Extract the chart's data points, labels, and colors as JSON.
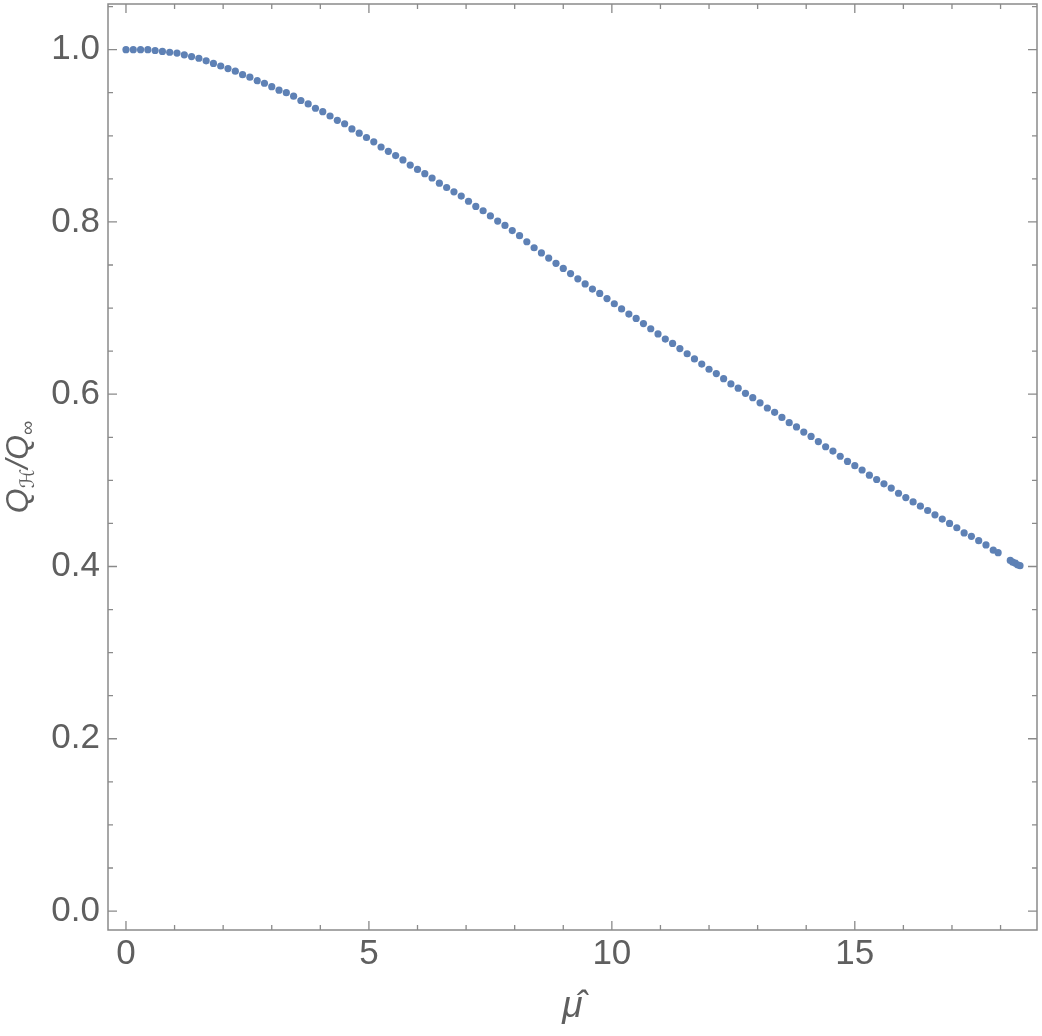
{
  "chart_data": {
    "type": "scatter",
    "xlabel": "μ̂",
    "ylabel": "Q$_{ℋ}$/Q$_{∞}$",
    "marker": "circle",
    "color": "#5e81b5",
    "x": [
      0,
      0.15,
      0.3,
      0.45,
      0.6,
      0.75,
      0.9,
      1.05,
      1.2,
      1.35,
      1.5,
      1.65,
      1.8,
      1.95,
      2.1,
      2.25,
      2.4,
      2.55,
      2.7,
      2.85,
      3,
      3.15,
      3.3,
      3.45,
      3.6,
      3.75,
      3.9,
      4.05,
      4.2,
      4.35,
      4.5,
      4.65,
      4.8,
      4.95,
      5.1,
      5.25,
      5.4,
      5.55,
      5.7,
      5.85,
      6,
      6.15,
      6.3,
      6.45,
      6.6,
      6.75,
      6.9,
      7.05,
      7.2,
      7.35,
      7.5,
      7.65,
      7.8,
      7.95,
      8.1,
      8.25,
      8.4,
      8.55,
      8.7,
      8.85,
      9,
      9.15,
      9.3,
      9.45,
      9.6,
      9.75,
      9.9,
      10.05,
      10.2,
      10.35,
      10.5,
      10.65,
      10.8,
      10.95,
      11.1,
      11.25,
      11.4,
      11.55,
      11.7,
      11.85,
      12,
      12.15,
      12.3,
      12.45,
      12.6,
      12.75,
      12.9,
      13.05,
      13.2,
      13.35,
      13.5,
      13.65,
      13.8,
      13.95,
      14.1,
      14.25,
      14.4,
      14.55,
      14.7,
      14.85,
      15,
      15.15,
      15.3,
      15.45,
      15.6,
      15.75,
      15.9,
      16.05,
      16.2,
      16.35,
      16.5,
      16.65,
      16.8,
      16.95,
      17.1,
      17.25,
      17.4,
      17.55,
      17.7,
      17.85,
      17.95,
      18.2,
      18.25,
      18.3,
      18.35,
      18.4
    ],
    "values": [
      1.0,
      1.0,
      1.0,
      1.0,
      0.999,
      0.998,
      0.997,
      0.996,
      0.994,
      0.992,
      0.99,
      0.987,
      0.984,
      0.981,
      0.978,
      0.975,
      0.971,
      0.968,
      0.964,
      0.961,
      0.957,
      0.953,
      0.95,
      0.946,
      0.941,
      0.937,
      0.932,
      0.928,
      0.923,
      0.918,
      0.914,
      0.908,
      0.903,
      0.898,
      0.893,
      0.887,
      0.882,
      0.877,
      0.872,
      0.866,
      0.861,
      0.856,
      0.851,
      0.845,
      0.84,
      0.835,
      0.83,
      0.824,
      0.818,
      0.813,
      0.807,
      0.801,
      0.796,
      0.79,
      0.784,
      0.777,
      0.77,
      0.764,
      0.758,
      0.752,
      0.746,
      0.74,
      0.734,
      0.728,
      0.722,
      0.717,
      0.711,
      0.705,
      0.699,
      0.693,
      0.688,
      0.682,
      0.676,
      0.67,
      0.664,
      0.659,
      0.653,
      0.647,
      0.641,
      0.635,
      0.629,
      0.624,
      0.618,
      0.612,
      0.607,
      0.601,
      0.596,
      0.59,
      0.584,
      0.579,
      0.573,
      0.567,
      0.562,
      0.556,
      0.551,
      0.545,
      0.539,
      0.534,
      0.528,
      0.522,
      0.517,
      0.512,
      0.506,
      0.501,
      0.496,
      0.491,
      0.485,
      0.48,
      0.475,
      0.47,
      0.465,
      0.46,
      0.455,
      0.45,
      0.445,
      0.439,
      0.435,
      0.43,
      0.425,
      0.419,
      0.416,
      0.407,
      0.405,
      0.404,
      0.402,
      0.401
    ],
    "xlim": [
      -0.37,
      18.75
    ],
    "ylim": [
      -0.022,
      1.053
    ],
    "xticks": [
      0,
      {
        "value": 1,
        "label": null
      },
      {
        "value": 2,
        "label": null
      },
      {
        "value": 3,
        "label": null
      },
      {
        "value": 4,
        "label": null
      },
      5,
      {
        "value": 6,
        "label": null
      },
      {
        "value": 7,
        "label": null
      },
      {
        "value": 8,
        "label": null
      },
      {
        "value": 9,
        "label": null
      },
      10,
      {
        "value": 11,
        "label": null
      },
      {
        "value": 12,
        "label": null
      },
      {
        "value": 13,
        "label": null
      },
      {
        "value": 14,
        "label": null
      },
      15,
      {
        "value": 16,
        "label": null
      },
      {
        "value": 17,
        "label": null
      },
      {
        "value": 18,
        "label": null
      }
    ],
    "yticks": [
      {
        "value": 0,
        "label": "0.0"
      },
      {
        "value": 0.05,
        "label": null
      },
      {
        "value": 0.1,
        "label": null
      },
      {
        "value": 0.15,
        "label": null
      },
      0.2,
      {
        "value": 0.25,
        "label": null
      },
      {
        "value": 0.3,
        "label": null
      },
      {
        "value": 0.35,
        "label": null
      },
      0.4,
      {
        "value": 0.45,
        "label": null
      },
      {
        "value": 0.5,
        "label": null
      },
      {
        "value": 0.55,
        "label": null
      },
      0.6,
      {
        "value": 0.65,
        "label": null
      },
      {
        "value": 0.7,
        "label": null
      },
      {
        "value": 0.75,
        "label": null
      },
      0.8,
      {
        "value": 0.85,
        "label": null
      },
      {
        "value": 0.9,
        "label": null
      },
      {
        "value": 0.95,
        "label": null
      },
      {
        "value": 1,
        "label": "1.0"
      },
      {
        "value": 1.05,
        "label": null
      }
    ]
  }
}
